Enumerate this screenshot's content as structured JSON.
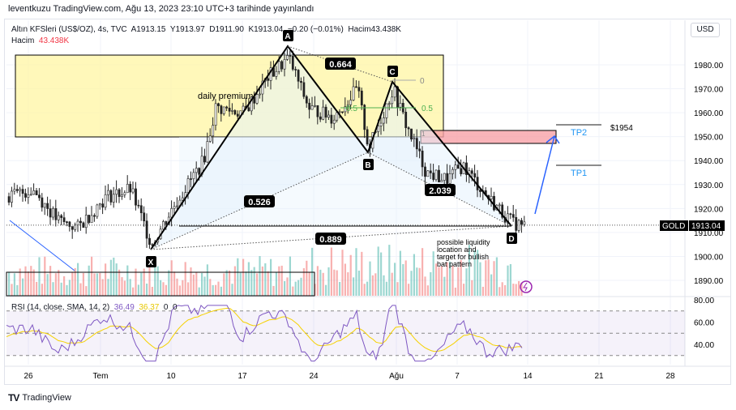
{
  "published": "leventkuzu TradingView.com, Ağu 13, 2023 23:10 UTC+3 tarihinde yayınlandı",
  "legend": {
    "title": "Altın KFSleri (US$/OZ), 4s, TVC",
    "open": "A1913.15",
    "high": "Y1913.97",
    "low": "D1911.90",
    "close": "K1913.04",
    "change": "−0.20 (−0.01%)",
    "volume": "Hacim43.438K",
    "vol_label": "Hacim",
    "vol_value": "43.438K"
  },
  "currency_button": "USD",
  "price_axis": [
    "1980.00",
    "1970.00",
    "1960.00",
    "1950.00",
    "1940.00",
    "1930.00",
    "1920.00",
    "1910.00",
    "1900.00",
    "1890.00"
  ],
  "price_values": [
    1980,
    1970,
    1960,
    1950,
    1940,
    1930,
    1920,
    1910,
    1900,
    1890
  ],
  "symbol_tag": "GOLD",
  "last_price": "1913.04",
  "last_price_value": 1913.04,
  "rsi_legend": {
    "label": "RSI (14, close, SMA, 14, 2)",
    "rsi": "36.49",
    "sma": "36.37",
    "a": "0",
    "b": "0"
  },
  "rsi_axis": [
    "80.00",
    "60.00",
    "40.00"
  ],
  "time_axis": [
    "26",
    "Tem",
    "10",
    "17",
    "24",
    "Ağu",
    "7",
    "14",
    "21",
    "28"
  ],
  "pattern_points": [
    {
      "label": "X",
      "price": 1903
    },
    {
      "label": "A",
      "price": 1988
    },
    {
      "label": "B",
      "price": 1943.5
    },
    {
      "label": "C",
      "price": 1973
    },
    {
      "label": "D",
      "price": 1913
    }
  ],
  "ratios": {
    "xb": "0.526",
    "ac": "0.664",
    "bd": "2.039",
    "xd": "0.889"
  },
  "fib": {
    "zero": "0",
    "half_left": "0.5",
    "half_right": "0.5",
    "one": "1"
  },
  "annotations": {
    "premium": "daily premium",
    "tp1": "TP1",
    "tp2": "TP2",
    "target": "$1954",
    "note": "possible liquidity location and target for bullish bat pattern"
  },
  "colors": {
    "up": "#26a69a",
    "down": "#ef5350",
    "premium_zone": "#fff59d",
    "target_zone": "#f7a1a7",
    "arrow": "#2962ff",
    "rsi": "#7e57c2",
    "rsi_sma": "#f5d100"
  },
  "brand": "TradingView"
}
